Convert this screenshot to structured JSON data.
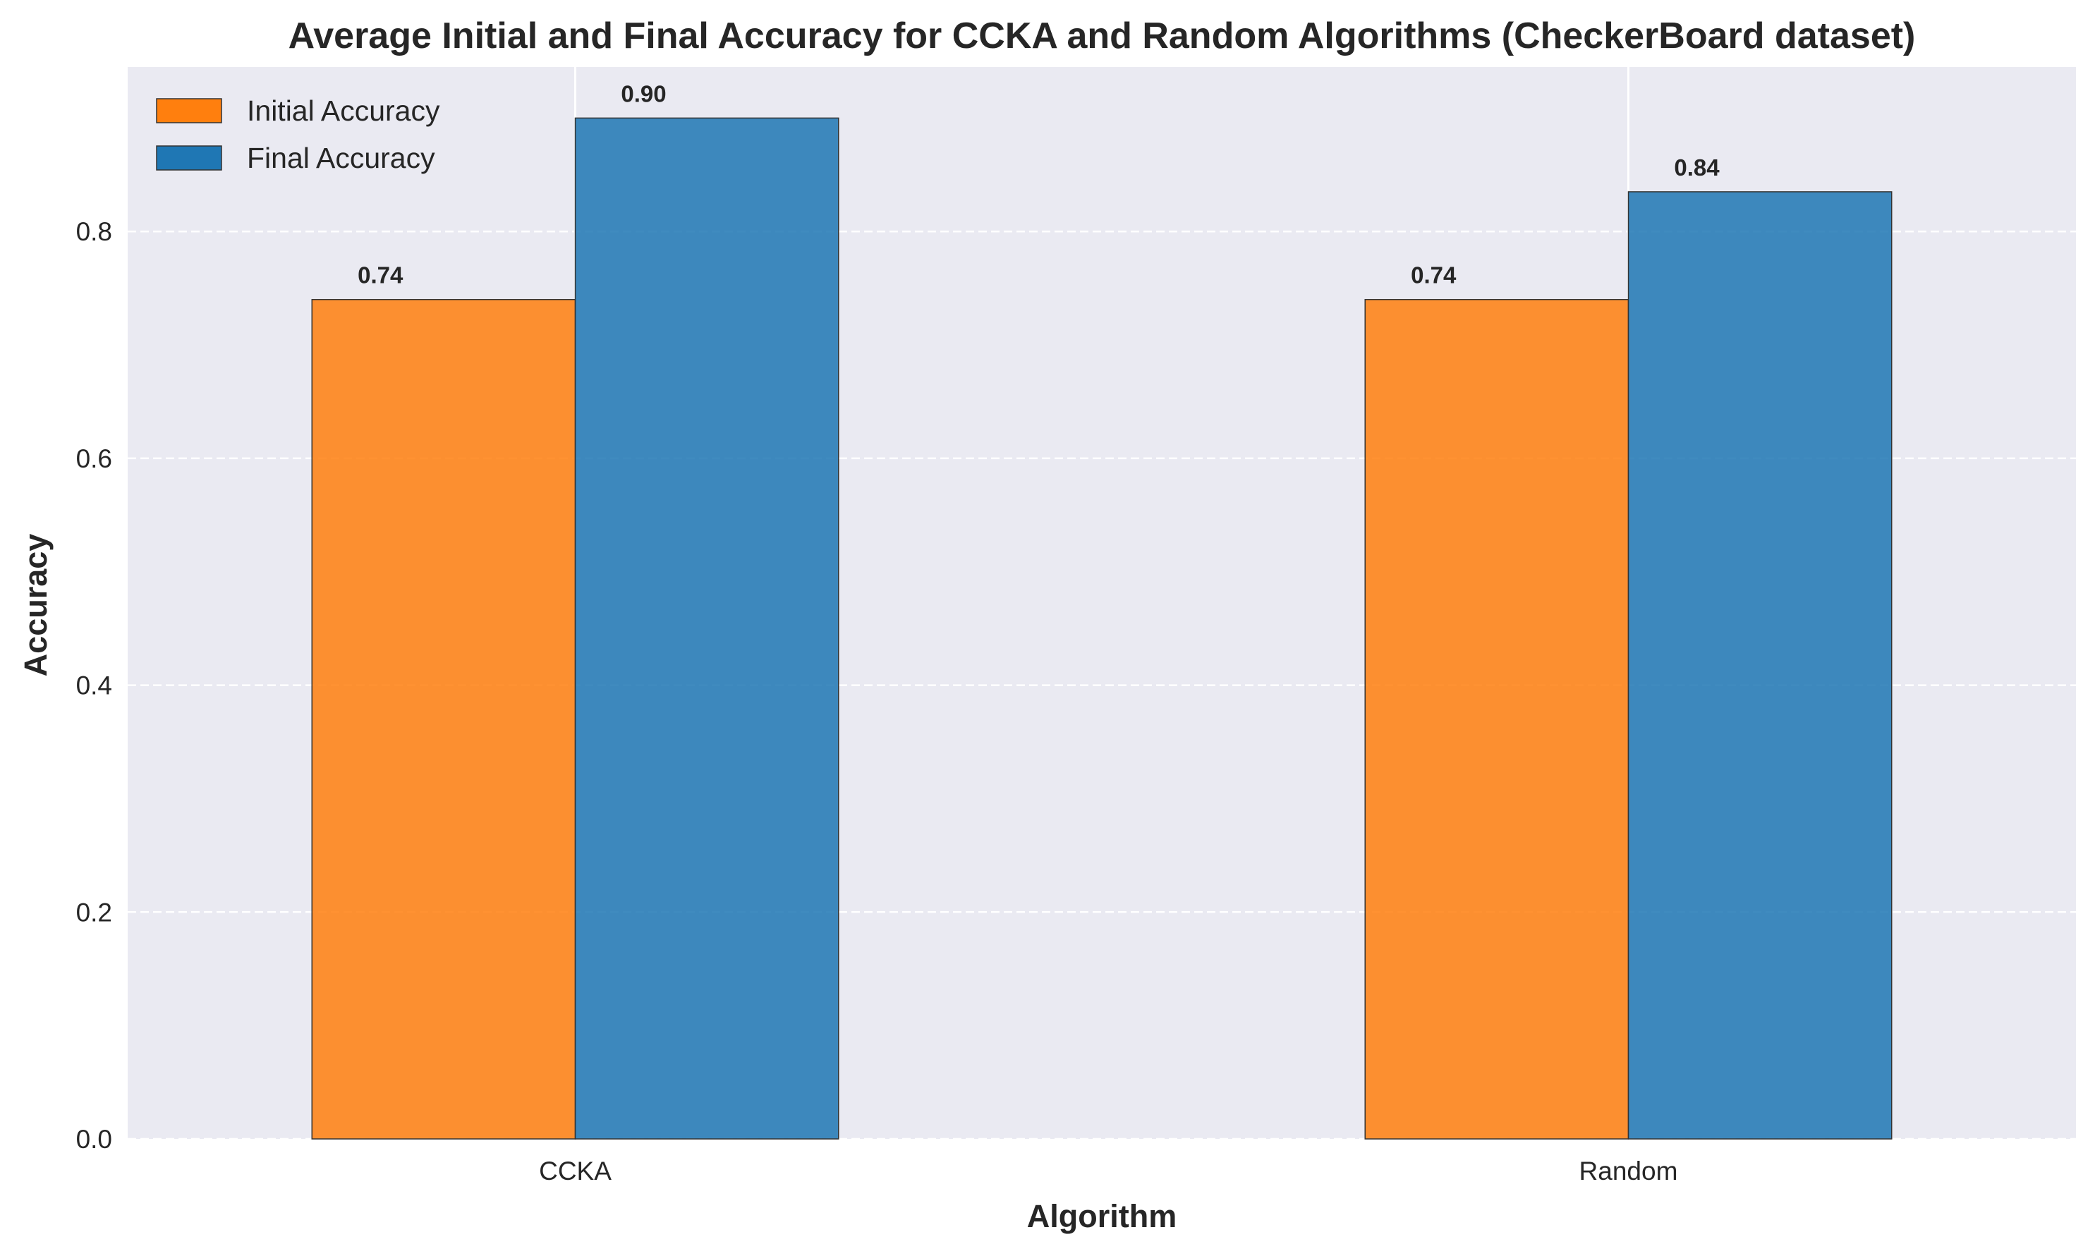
{
  "chart_data": {
    "type": "bar",
    "title": "Average Initial and Final Accuracy for CCKA and Random Algorithms (CheckerBoard dataset)",
    "xlabel": "Algorithm",
    "ylabel": "Accuracy",
    "categories": [
      "CCKA",
      "Random"
    ],
    "series": [
      {
        "name": "Initial Accuracy",
        "values": [
          0.74,
          0.74
        ],
        "labels": [
          "0.74",
          "0.74"
        ],
        "color": "#ff7f0e"
      },
      {
        "name": "Final Accuracy",
        "values": [
          0.9,
          0.835
        ],
        "labels": [
          "0.90",
          "0.84"
        ],
        "color": "#1f77b4"
      }
    ],
    "ylim": [
      0,
      0.945
    ],
    "yticks": [
      "0.0",
      "0.2",
      "0.4",
      "0.6",
      "0.8"
    ],
    "grid": true,
    "legend_position": "top-left",
    "background": "#eaeaf2"
  }
}
